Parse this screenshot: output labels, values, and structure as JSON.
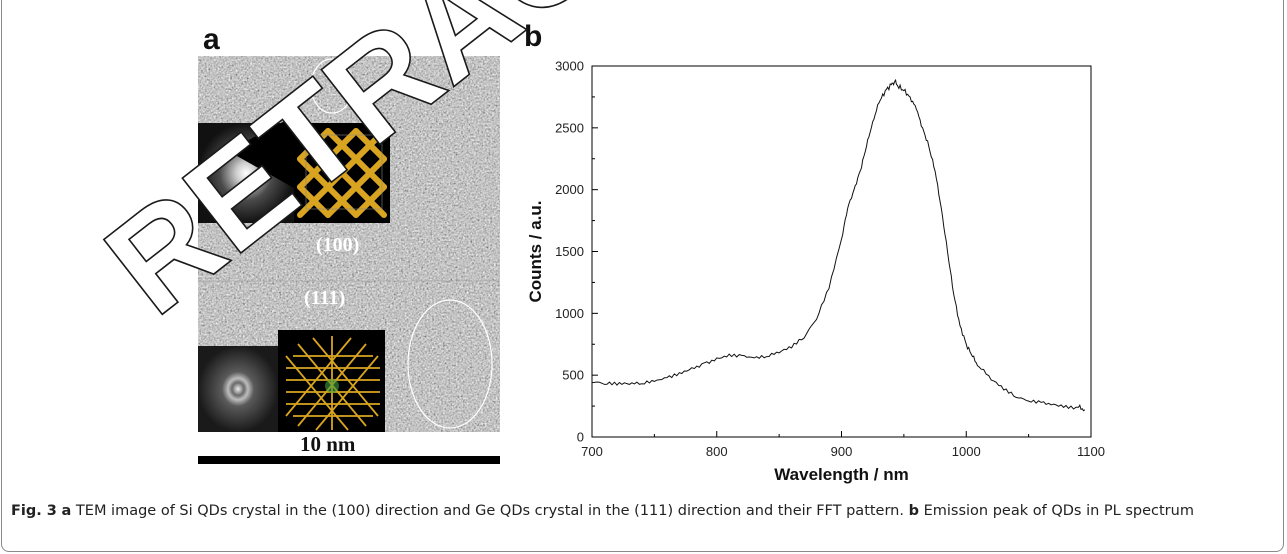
{
  "panel_a": {
    "label": "a",
    "direction_1": "(100)",
    "direction_2": "(111)",
    "scale_bar_label": "10 nm"
  },
  "panel_b": {
    "label": "b"
  },
  "watermark": {
    "text": "RETRACTED",
    "color": "#ffffff"
  },
  "caption": {
    "fig_label": "Fig. 3",
    "part_a_label": "a",
    "part_a_text": " TEM image of Si QDs crystal in the (100) direction and Ge QDs crystal in the (111) direction and their FFT pattern. ",
    "part_b_label": "b",
    "part_b_text": " Emission peak of QDs in PL spectrum"
  },
  "chart_data": {
    "type": "line",
    "xlabel": "Wavelength / nm",
    "ylabel": "Counts / a.u.",
    "xlim": [
      700,
      1100
    ],
    "ylim": [
      0,
      3000
    ],
    "xticks": [
      700,
      800,
      900,
      1000,
      1100
    ],
    "yticks": [
      0,
      500,
      1000,
      1500,
      2000,
      2500,
      3000
    ],
    "grid": false,
    "series": [
      {
        "x": [
          700,
          710,
          720,
          730,
          740,
          750,
          760,
          770,
          780,
          790,
          800,
          810,
          820,
          830,
          840,
          850,
          860,
          870,
          880,
          890,
          900,
          905,
          910,
          915,
          920,
          925,
          930,
          935,
          940,
          943,
          945,
          950,
          955,
          960,
          965,
          970,
          975,
          980,
          985,
          990,
          995,
          1000,
          1005,
          1010,
          1020,
          1030,
          1040,
          1050,
          1060,
          1070,
          1080,
          1090,
          1095
        ],
        "values": [
          440,
          425,
          420,
          425,
          430,
          450,
          480,
          520,
          560,
          600,
          640,
          670,
          660,
          640,
          650,
          680,
          720,
          800,
          950,
          1200,
          1600,
          1850,
          2000,
          2150,
          2350,
          2550,
          2700,
          2800,
          2850,
          2880,
          2840,
          2800,
          2750,
          2650,
          2500,
          2350,
          2150,
          1850,
          1500,
          1150,
          900,
          750,
          650,
          570,
          460,
          380,
          320,
          290,
          280,
          265,
          255,
          240,
          220
        ]
      }
    ]
  }
}
